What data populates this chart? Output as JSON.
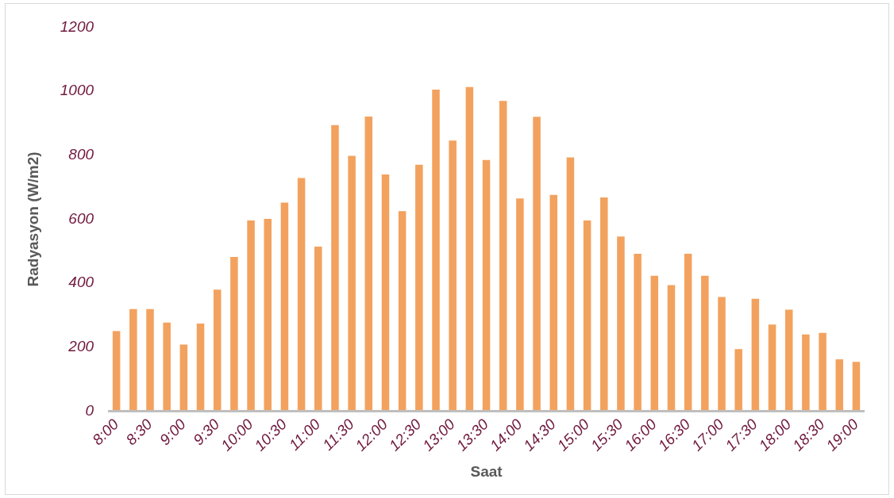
{
  "chart_data": {
    "type": "bar",
    "xlabel": "Saat",
    "ylabel": "Radyasyon (W/m2)",
    "categories": [
      "8:00",
      null,
      "8:30",
      null,
      "9:00",
      null,
      "9:30",
      null,
      "10:00",
      null,
      "10:30",
      null,
      "11:00",
      null,
      "11:30",
      null,
      "12:00",
      null,
      "12:30",
      null,
      "13:00",
      null,
      "13:30",
      null,
      "14:00",
      null,
      "14:30",
      null,
      "15:00",
      null,
      "15:30",
      null,
      "16:00",
      null,
      "16:30",
      null,
      "17:00",
      null,
      "17:30",
      null,
      "18:00",
      null,
      "18:30",
      null,
      "19:00"
    ],
    "values": [
      250,
      319,
      319,
      277,
      208,
      274,
      380,
      482,
      596,
      601,
      652,
      729,
      514,
      894,
      798,
      921,
      740,
      625,
      770,
      1005,
      846,
      1013,
      785,
      970,
      665,
      920,
      676,
      793,
      596,
      668,
      546,
      492,
      423,
      394,
      492,
      423,
      357,
      194,
      351,
      271,
      317,
      240,
      245,
      162,
      154
    ],
    "color": "#f2a25e",
    "ylim": [
      0,
      1200
    ],
    "yticks": [
      0,
      200,
      400,
      600,
      800,
      1000,
      1200
    ],
    "grid": false,
    "legend": false
  }
}
